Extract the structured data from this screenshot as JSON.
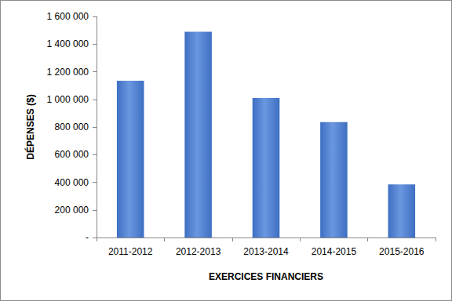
{
  "chart_data": {
    "type": "bar",
    "categories": [
      "2011-2012",
      "2012-2013",
      "2013-2014",
      "2014-2015",
      "2015-2016"
    ],
    "values": [
      1135000,
      1490000,
      1010000,
      835000,
      385000
    ],
    "color": "#3e6fc2",
    "x_label": "EXERCICES FINANCIERS",
    "y_label": "DÉPENSES ($)",
    "ylim": [
      0,
      1600000
    ],
    "yticks": [
      {
        "value": 0,
        "label": "-"
      },
      {
        "value": 200000,
        "label": "200 000"
      },
      {
        "value": 400000,
        "label": "400 000"
      },
      {
        "value": 600000,
        "label": "600 000"
      },
      {
        "value": 800000,
        "label": "800 000"
      },
      {
        "value": 1000000,
        "label": "1 000 000"
      },
      {
        "value": 1200000,
        "label": "1 200 000"
      },
      {
        "value": 1400000,
        "label": "1 400 000"
      },
      {
        "value": 1600000,
        "label": "1 600 000"
      }
    ],
    "grid": false
  }
}
